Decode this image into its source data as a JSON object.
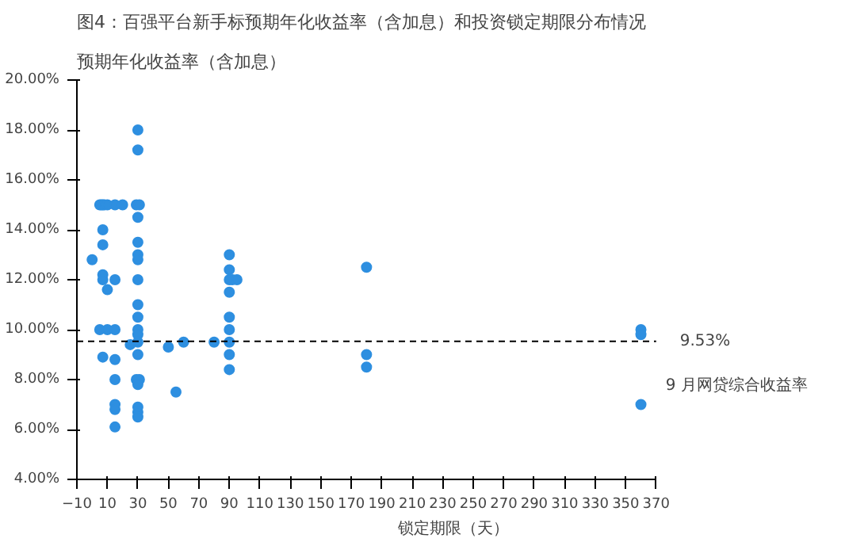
{
  "chart_data": {
    "type": "scatter",
    "title": "图4：百强平台新手标预期年化收益率（含加息）和投资锁定期限分布情况",
    "ylabel": "预期年化收益率（含加息）",
    "xlabel": "锁定期限（天）",
    "x": [
      0,
      5,
      6,
      7,
      8,
      10,
      15,
      20,
      7,
      7,
      7,
      7,
      10,
      15,
      5,
      10,
      15,
      7,
      15,
      15,
      15,
      15,
      15,
      30,
      30,
      29,
      31,
      30,
      30,
      30,
      30,
      30,
      30,
      30,
      30,
      30,
      30,
      30,
      25,
      29,
      31,
      30,
      30,
      30,
      30,
      50,
      55,
      60,
      80,
      90,
      90,
      90,
      92,
      95,
      90,
      90,
      90,
      90,
      90,
      90,
      180,
      180,
      180,
      360,
      360,
      360
    ],
    "values": [
      12.8,
      15,
      15,
      15,
      15,
      15,
      15,
      15,
      14,
      13.4,
      12.2,
      12,
      11.6,
      12,
      10,
      10,
      10,
      8.9,
      8.8,
      8,
      7,
      6.8,
      6.1,
      18,
      17.2,
      15,
      15,
      14.5,
      13.5,
      13,
      12.8,
      12,
      11,
      10.5,
      10,
      9.8,
      9.5,
      9,
      9.4,
      8,
      8,
      7.8,
      6.9,
      6.7,
      6.5,
      9.3,
      7.5,
      9.5,
      9.5,
      13,
      12.4,
      12,
      12,
      12,
      11.5,
      10.5,
      10,
      9.5,
      9,
      8.4,
      12.5,
      9,
      8.5,
      10,
      9.8,
      7
    ],
    "color": "#2e8fe0",
    "marker": "circle",
    "xlim": [
      -10,
      370
    ],
    "xticks": [
      -10,
      10,
      30,
      50,
      70,
      90,
      110,
      130,
      150,
      170,
      190,
      210,
      230,
      250,
      270,
      290,
      310,
      330,
      350,
      370
    ],
    "ylim": [
      4,
      20
    ],
    "yticks": [
      {
        "value": 4,
        "label": "4.00%"
      },
      {
        "value": 6,
        "label": "6.00%"
      },
      {
        "value": 8,
        "label": "8.00%"
      },
      {
        "value": 10,
        "label": "10.00%"
      },
      {
        "value": 12,
        "label": "12.00%"
      },
      {
        "value": 14,
        "label": "14.00%"
      },
      {
        "value": 16,
        "label": "16.00%"
      },
      {
        "value": 18,
        "label": "18.00%"
      },
      {
        "value": 20,
        "label": "20.00%"
      }
    ],
    "ref_lines": [
      {
        "axis": "y",
        "value": 9.53,
        "label": "9.53%",
        "color": "#000000",
        "line_style": "dashed"
      }
    ],
    "annotations": [
      "9 月网贷综合收益率"
    ],
    "grid": false
  }
}
